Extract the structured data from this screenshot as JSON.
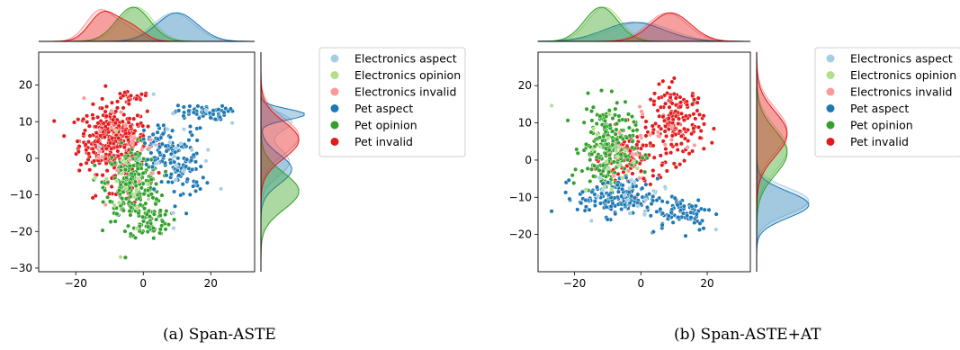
{
  "colors": {
    "Electronics aspect": "#a6cee3",
    "Electronics opinion": "#b2df8a",
    "Electronics invalid": "#fb9a99",
    "Pet aspect": "#1f78b4",
    "Pet opinion": "#33a02c",
    "Pet invalid": "#e31a1c"
  },
  "captions": [
    "(a) Span-ASTE",
    "(b) Span-ASTE+AT"
  ],
  "chart_data": [
    {
      "type": "scatter",
      "title": "",
      "caption": "(a) Span-ASTE",
      "xlabel": "",
      "ylabel": "",
      "xlim": [
        -31,
        33
      ],
      "ylim": [
        -31,
        29
      ],
      "xticks": [
        -20,
        0,
        20
      ],
      "yticks": [
        -30,
        -20,
        -10,
        0,
        10,
        20
      ],
      "grid": false,
      "legend": {
        "position": "right",
        "entries": [
          "Electronics aspect",
          "Electronics opinion",
          "Electronics invalid",
          "Pet aspect",
          "Pet opinion",
          "Pet invalid"
        ]
      },
      "marginal": "kde",
      "series": [
        {
          "name": "Pet invalid",
          "clusters": [
            {
              "cx": -9,
              "cy": 5,
              "sx": 5,
              "sy": 4.5,
              "n": 380
            },
            {
              "cx": -4,
              "cy": 16.5,
              "sx": 3,
              "sy": 0.8,
              "n": 20
            },
            {
              "cx": -7,
              "cy": -9,
              "sx": 3,
              "sy": 2,
              "n": 25
            }
          ]
        },
        {
          "name": "Pet opinion",
          "clusters": [
            {
              "cx": -3,
              "cy": -7,
              "sx": 4,
              "sy": 5,
              "n": 260
            },
            {
              "cx": 2,
              "cy": -17,
              "sx": 3,
              "sy": 2.5,
              "n": 70
            }
          ]
        },
        {
          "name": "Pet aspect",
          "clusters": [
            {
              "cx": 17,
              "cy": 12.5,
              "sx": 4,
              "sy": 1,
              "n": 60
            },
            {
              "cx": 11,
              "cy": -2,
              "sx": 3.5,
              "sy": 5,
              "n": 110
            },
            {
              "cx": 4,
              "cy": 4,
              "sx": 2,
              "sy": 3,
              "n": 40
            }
          ]
        },
        {
          "name": "Electronics aspect",
          "clusters": [
            {
              "cx": 8,
              "cy": 0,
              "sx": 7,
              "sy": 8,
              "n": 25
            }
          ]
        },
        {
          "name": "Electronics opinion",
          "clusters": [
            {
              "cx": -4,
              "cy": -5,
              "sx": 6,
              "sy": 7,
              "n": 20
            }
          ]
        },
        {
          "name": "Electronics invalid",
          "clusters": [
            {
              "cx": -8,
              "cy": 3,
              "sx": 6,
              "sy": 6,
              "n": 20
            }
          ]
        }
      ],
      "x_kde": [
        {
          "name": "Electronics aspect",
          "components": [
            {
              "mu": 9,
              "sigma": 6,
              "w": 1
            }
          ]
        },
        {
          "name": "Electronics opinion",
          "components": [
            {
              "mu": -2,
              "sigma": 5,
              "w": 1
            }
          ]
        },
        {
          "name": "Electronics invalid",
          "components": [
            {
              "mu": -13,
              "sigma": 4,
              "w": 0.7
            },
            {
              "mu": -5,
              "sigma": 4,
              "w": 0.3
            }
          ]
        },
        {
          "name": "Pet aspect",
          "components": [
            {
              "mu": 10,
              "sigma": 6,
              "w": 1
            }
          ]
        },
        {
          "name": "Pet opinion",
          "components": [
            {
              "mu": -3,
              "sigma": 5,
              "w": 1
            }
          ]
        },
        {
          "name": "Pet invalid",
          "components": [
            {
              "mu": -12,
              "sigma": 4,
              "w": 0.65
            },
            {
              "mu": -4,
              "sigma": 4,
              "w": 0.35
            }
          ]
        }
      ],
      "y_kde": [
        {
          "name": "Electronics aspect",
          "components": [
            {
              "mu": 10,
              "sigma": 2.5,
              "w": 0.4
            },
            {
              "mu": -1,
              "sigma": 4,
              "w": 0.6
            }
          ]
        },
        {
          "name": "Electronics opinion",
          "components": [
            {
              "mu": -9,
              "sigma": 5,
              "w": 1
            }
          ]
        },
        {
          "name": "Electronics invalid",
          "components": [
            {
              "mu": 6,
              "sigma": 5,
              "w": 1
            }
          ]
        },
        {
          "name": "Pet aspect",
          "components": [
            {
              "mu": 12,
              "sigma": 1.5,
              "w": 0.35
            },
            {
              "mu": -3,
              "sigma": 4,
              "w": 0.65
            }
          ]
        },
        {
          "name": "Pet opinion",
          "components": [
            {
              "mu": -9,
              "sigma": 5,
              "w": 1
            }
          ]
        },
        {
          "name": "Pet invalid",
          "components": [
            {
              "mu": 5,
              "sigma": 5,
              "w": 1
            }
          ]
        }
      ]
    },
    {
      "type": "scatter",
      "title": "",
      "caption": "(b) Span-ASTE+AT",
      "xlabel": "",
      "ylabel": "",
      "xlim": [
        -31,
        33
      ],
      "ylim": [
        -30,
        29
      ],
      "xticks": [
        -20,
        0,
        20
      ],
      "yticks": [
        -20,
        -10,
        0,
        10,
        20
      ],
      "grid": false,
      "legend": {
        "position": "right",
        "entries": [
          "Electronics aspect",
          "Electronics opinion",
          "Electronics invalid",
          "Pet aspect",
          "Pet opinion",
          "Pet invalid"
        ]
      },
      "marginal": "kde",
      "series": [
        {
          "name": "Pet invalid",
          "clusters": [
            {
              "cx": 11,
              "cy": 10,
              "sx": 4,
              "sy": 5,
              "n": 170
            },
            {
              "cx": -3,
              "cy": 0,
              "sx": 4,
              "sy": 4,
              "n": 110
            }
          ]
        },
        {
          "name": "Pet opinion",
          "clusters": [
            {
              "cx": -10,
              "cy": 3,
              "sx": 4,
              "sy": 6,
              "n": 240
            }
          ]
        },
        {
          "name": "Pet aspect",
          "clusters": [
            {
              "cx": -7,
              "cy": -10,
              "sx": 6,
              "sy": 2.5,
              "n": 150
            },
            {
              "cx": 12,
              "cy": -14,
              "sx": 5,
              "sy": 2.5,
              "n": 80
            }
          ]
        },
        {
          "name": "Electronics aspect",
          "clusters": [
            {
              "cx": 0,
              "cy": -10,
              "sx": 8,
              "sy": 4,
              "n": 20
            }
          ]
        },
        {
          "name": "Electronics opinion",
          "clusters": [
            {
              "cx": -10,
              "cy": 2,
              "sx": 5,
              "sy": 6,
              "n": 20
            }
          ]
        },
        {
          "name": "Electronics invalid",
          "clusters": [
            {
              "cx": 4,
              "cy": 5,
              "sx": 7,
              "sy": 6,
              "n": 20
            }
          ]
        }
      ],
      "x_kde": [
        {
          "name": "Electronics aspect",
          "components": [
            {
              "mu": 0,
              "sigma": 9,
              "w": 1
            }
          ]
        },
        {
          "name": "Electronics opinion",
          "components": [
            {
              "mu": -11,
              "sigma": 5,
              "w": 1
            }
          ]
        },
        {
          "name": "Electronics invalid",
          "components": [
            {
              "mu": 8,
              "sigma": 6,
              "w": 1
            }
          ]
        },
        {
          "name": "Pet aspect",
          "components": [
            {
              "mu": -2,
              "sigma": 9,
              "w": 1
            }
          ]
        },
        {
          "name": "Pet opinion",
          "components": [
            {
              "mu": -12,
              "sigma": 5,
              "w": 1
            }
          ]
        },
        {
          "name": "Pet invalid",
          "components": [
            {
              "mu": 9,
              "sigma": 6,
              "w": 1
            }
          ]
        }
      ],
      "y_kde": [
        {
          "name": "Electronics aspect",
          "components": [
            {
              "mu": -11,
              "sigma": 3.5,
              "w": 1
            }
          ]
        },
        {
          "name": "Electronics opinion",
          "components": [
            {
              "mu": 3,
              "sigma": 6,
              "w": 1
            }
          ]
        },
        {
          "name": "Electronics invalid",
          "components": [
            {
              "mu": 8,
              "sigma": 6,
              "w": 1
            }
          ]
        },
        {
          "name": "Pet aspect",
          "components": [
            {
              "mu": -12,
              "sigma": 3.5,
              "w": 1
            }
          ]
        },
        {
          "name": "Pet opinion",
          "components": [
            {
              "mu": 2,
              "sigma": 6,
              "w": 1
            }
          ]
        },
        {
          "name": "Pet invalid",
          "components": [
            {
              "mu": 7,
              "sigma": 6,
              "w": 1
            }
          ]
        }
      ]
    }
  ]
}
